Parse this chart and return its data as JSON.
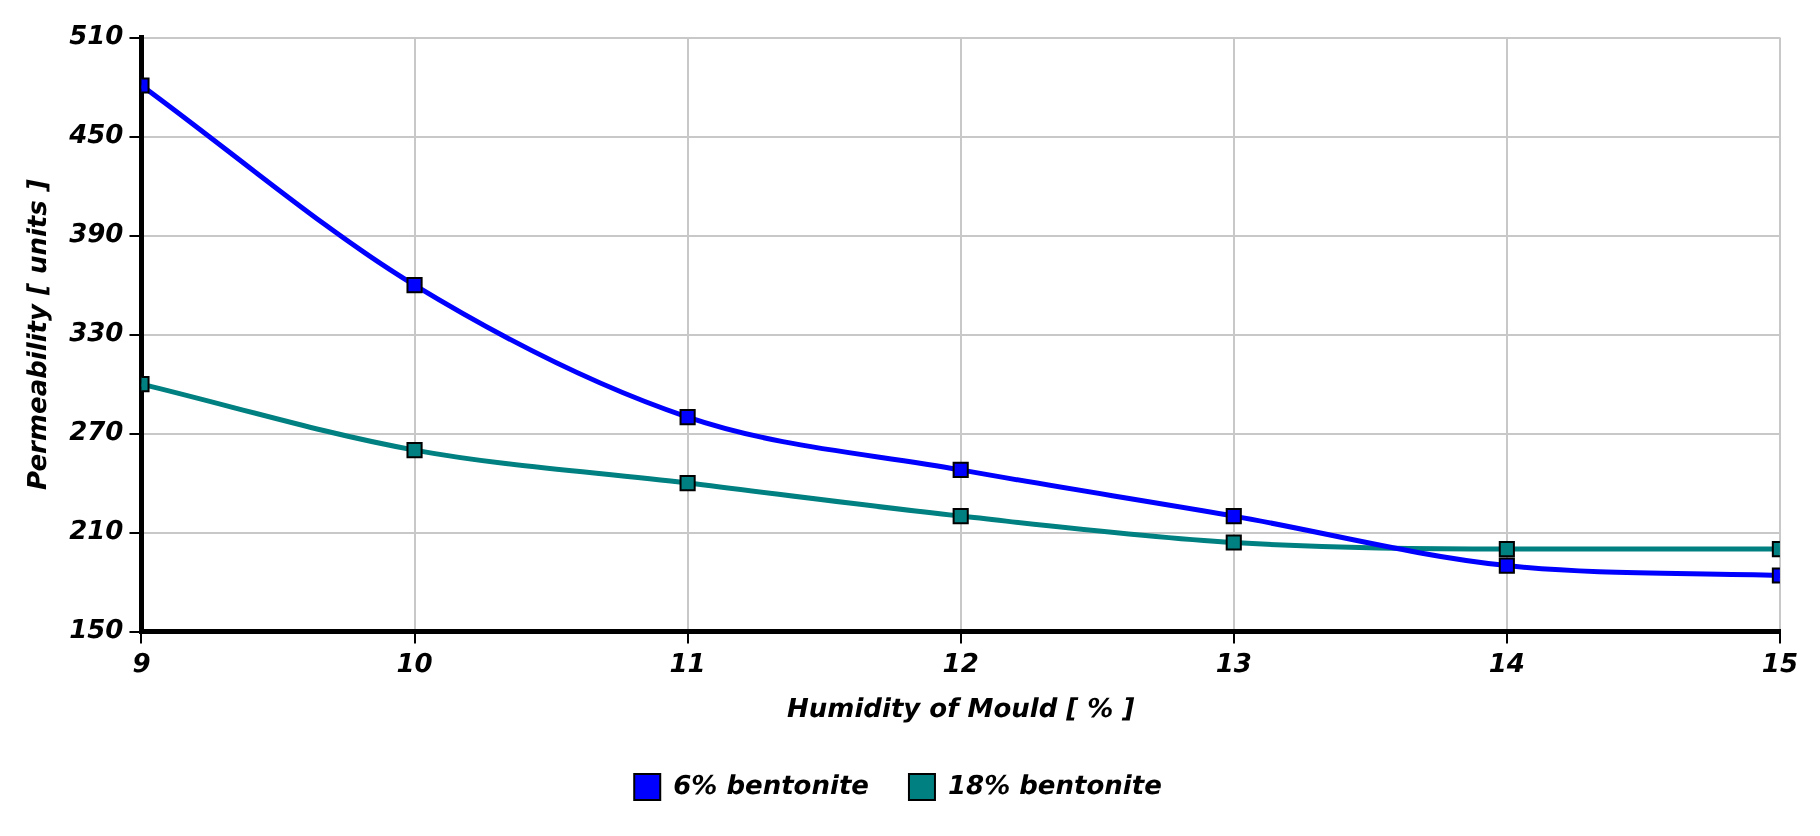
{
  "chart_data": {
    "type": "line",
    "xlabel": "Humidity of Mould [ % ]",
    "ylabel": "Permeability [ units ]",
    "x": [
      9,
      10,
      11,
      12,
      13,
      14,
      15
    ],
    "series": [
      {
        "name": "6% bentonite",
        "color": "#0000ff",
        "values": [
          481,
          360,
          280,
          248,
          220,
          190,
          184
        ]
      },
      {
        "name": "18% bentonite",
        "color": "#008080",
        "values": [
          300,
          260,
          240,
          220,
          204,
          200,
          200
        ]
      }
    ],
    "xlim": [
      9,
      15
    ],
    "xticks": [
      9,
      10,
      11,
      12,
      13,
      14,
      15
    ],
    "ylim": [
      150,
      510
    ],
    "yticks": [
      150,
      210,
      270,
      330,
      390,
      450,
      510
    ],
    "grid": true,
    "legend": "bottom",
    "marker": "square",
    "line_style": "solid"
  }
}
